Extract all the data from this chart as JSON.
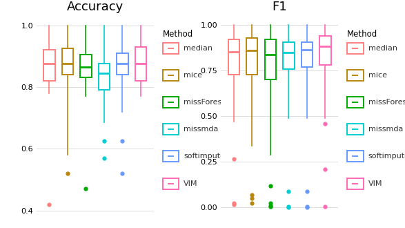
{
  "title_accuracy": "Accuracy",
  "title_f1": "F1",
  "methods": [
    "median",
    "mice",
    "missForest",
    "missmda",
    "softimpute",
    "VIM"
  ],
  "colors": [
    "#FF7F7F",
    "#B8860B",
    "#00AA00",
    "#00CED1",
    "#6699FF",
    "#FF69B4"
  ],
  "accuracy": {
    "median": {
      "q1": 0.82,
      "median": 0.875,
      "q3": 0.92,
      "whislo": 0.78,
      "whishi": 1.0,
      "fliers": [
        0.42
      ]
    },
    "mice": {
      "q1": 0.84,
      "median": 0.875,
      "q3": 0.925,
      "whislo": 0.58,
      "whishi": 1.0,
      "fliers": [
        0.52
      ]
    },
    "missForest": {
      "q1": 0.83,
      "median": 0.865,
      "q3": 0.905,
      "whislo": 0.77,
      "whishi": 1.0,
      "fliers": [
        0.47
      ]
    },
    "missmda": {
      "q1": 0.79,
      "median": 0.845,
      "q3": 0.875,
      "whislo": 0.685,
      "whishi": 1.0,
      "fliers": [
        0.625,
        0.57
      ]
    },
    "softimpute": {
      "q1": 0.84,
      "median": 0.875,
      "q3": 0.91,
      "whislo": 0.72,
      "whishi": 1.0,
      "fliers": [
        0.625,
        0.52
      ]
    },
    "VIM": {
      "q1": 0.82,
      "median": 0.875,
      "q3": 0.93,
      "whislo": 0.77,
      "whishi": 1.0,
      "fliers": []
    }
  },
  "f1": {
    "median": {
      "q1": 0.73,
      "median": 0.855,
      "q3": 0.92,
      "whislo": 0.47,
      "whishi": 1.0,
      "fliers": [
        0.265,
        0.025,
        0.015
      ]
    },
    "mice": {
      "q1": 0.73,
      "median": 0.86,
      "q3": 0.93,
      "whislo": 0.34,
      "whishi": 1.0,
      "fliers": [
        0.07,
        0.05,
        0.025
      ]
    },
    "missForest": {
      "q1": 0.7,
      "median": 0.84,
      "q3": 0.92,
      "whislo": 0.29,
      "whishi": 1.0,
      "fliers": [
        0.12,
        0.025,
        0.01,
        0.005
      ]
    },
    "missmda": {
      "q1": 0.76,
      "median": 0.85,
      "q3": 0.905,
      "whislo": 0.49,
      "whishi": 1.0,
      "fliers": [
        0.09,
        0.005,
        0.0
      ]
    },
    "softimpute": {
      "q1": 0.77,
      "median": 0.865,
      "q3": 0.905,
      "whislo": 0.49,
      "whishi": 1.0,
      "fliers": [
        0.09,
        0.005,
        0.0
      ]
    },
    "VIM": {
      "q1": 0.78,
      "median": 0.885,
      "q3": 0.94,
      "whislo": 0.49,
      "whishi": 1.0,
      "fliers": [
        0.46,
        0.21,
        0.005
      ]
    }
  },
  "accuracy_ylim": [
    0.38,
    1.03
  ],
  "f1_ylim": [
    -0.05,
    1.05
  ],
  "accuracy_yticks": [
    0.4,
    0.6,
    0.8,
    1.0
  ],
  "f1_yticks": [
    0.0,
    0.25,
    0.5,
    0.75,
    1.0
  ],
  "legend_title": "Method",
  "background_color": "#FFFFFF",
  "grid_color": "#DDDDDD"
}
